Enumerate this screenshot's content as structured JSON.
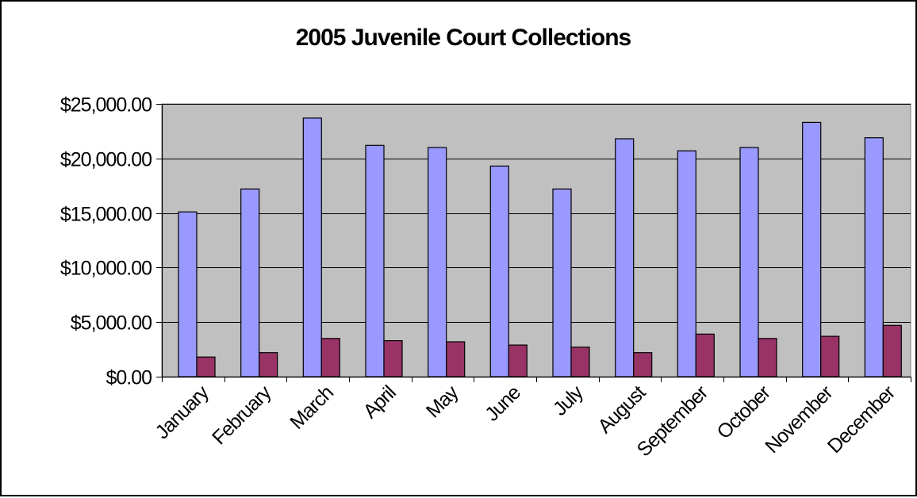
{
  "chart_data": {
    "type": "bar",
    "title": "2005 Juvenile Court Collections",
    "xlabel": "",
    "ylabel": "",
    "categories": [
      "January",
      "February",
      "March",
      "April",
      "May",
      "June",
      "July",
      "August",
      "September",
      "October",
      "November",
      "December"
    ],
    "series": [
      {
        "color": "#9999ff",
        "values": [
          15100,
          17200,
          23700,
          21200,
          21000,
          19300,
          17200,
          21800,
          20700,
          21000,
          23300,
          21900
        ]
      },
      {
        "color": "#993366",
        "values": [
          1800,
          2200,
          3500,
          3300,
          3200,
          2900,
          2700,
          2200,
          3900,
          3500,
          3700,
          4700
        ]
      }
    ],
    "ylim": [
      0,
      25000
    ],
    "yticks": [
      0,
      5000,
      10000,
      15000,
      20000,
      25000
    ],
    "ytick_labels": [
      "$0.00",
      "$5,000.00",
      "$10,000.00",
      "$15,000.00",
      "$20,000.00",
      "$25,000.00"
    ],
    "grid": true,
    "legend": "none",
    "plot_background": "#c0c0c0"
  }
}
